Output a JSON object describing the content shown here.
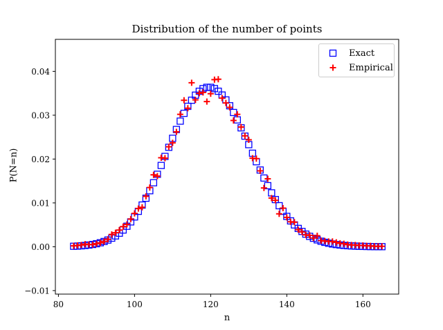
{
  "chart_data": {
    "type": "scatter",
    "title": "Distribution of the number of points",
    "xlabel": "n",
    "ylabel": "P(N=n)",
    "xlim": [
      79.2,
      169.4
    ],
    "ylim": [
      -0.0108,
      0.0473
    ],
    "xticks": [
      80,
      100,
      120,
      140,
      160
    ],
    "xtick_labels": [
      "80",
      "100",
      "120",
      "140",
      "160"
    ],
    "yticks": [
      -0.01,
      0.0,
      0.01,
      0.02,
      0.03,
      0.04
    ],
    "ytick_labels": [
      "−0.01",
      "0.00",
      "0.01",
      "0.02",
      "0.03",
      "0.04"
    ],
    "grid": false,
    "legend_position": "top-right",
    "x": [
      84,
      85,
      86,
      87,
      88,
      89,
      90,
      91,
      92,
      93,
      94,
      95,
      96,
      97,
      98,
      99,
      100,
      101,
      102,
      103,
      104,
      105,
      106,
      107,
      108,
      109,
      110,
      111,
      112,
      113,
      114,
      115,
      116,
      117,
      118,
      119,
      120,
      121,
      122,
      123,
      124,
      125,
      126,
      127,
      128,
      129,
      130,
      131,
      132,
      133,
      134,
      135,
      136,
      137,
      138,
      139,
      140,
      141,
      142,
      143,
      144,
      145,
      146,
      147,
      148,
      149,
      150,
      151,
      152,
      153,
      154,
      155,
      156,
      157,
      158,
      159,
      160,
      161,
      162,
      163,
      164,
      165
    ],
    "series": [
      {
        "name": "Exact",
        "marker": "square",
        "color": "#0000ff",
        "values": [
          0.00011,
          0.00015,
          0.00021,
          0.00029,
          0.00039,
          0.00052,
          0.00069,
          0.00091,
          0.00119,
          0.00153,
          0.00196,
          0.00247,
          0.00309,
          0.00382,
          0.00468,
          0.00567,
          0.0068,
          0.00808,
          0.00951,
          0.01107,
          0.01278,
          0.0146,
          0.01653,
          0.01854,
          0.0206,
          0.02268,
          0.02474,
          0.02674,
          0.02865,
          0.03043,
          0.03203,
          0.03342,
          0.03457,
          0.03546,
          0.03606,
          0.03636,
          0.03636,
          0.03606,
          0.03547,
          0.0346,
          0.03349,
          0.03215,
          0.03062,
          0.02893,
          0.02712,
          0.02523,
          0.02329,
          0.02133,
          0.01939,
          0.0175,
          0.01567,
          0.01393,
          0.01229,
          0.01076,
          0.00936,
          0.00808,
          0.00693,
          0.0059,
          0.00498,
          0.00418,
          0.00349,
          0.00288,
          0.00237,
          0.00193,
          0.00157,
          0.00126,
          0.00101,
          0.0008,
          0.00063,
          0.0005,
          0.00039,
          0.0003,
          0.00023,
          0.00018,
          0.00014,
          0.0001,
          8e-05,
          6e-05,
          4e-05,
          3e-05,
          2e-05,
          2e-05
        ]
      },
      {
        "name": "Empirical",
        "marker": "plus",
        "color": "#ff0000",
        "values": [
          0.0002,
          0.0003,
          0.0004,
          0.0006,
          0.0005,
          0.0005,
          0.0007,
          0.0009,
          0.0012,
          0.0017,
          0.0028,
          0.0032,
          0.0038,
          0.0046,
          0.0051,
          0.0063,
          0.0076,
          0.0087,
          0.009,
          0.0115,
          0.0135,
          0.0164,
          0.0161,
          0.0203,
          0.0202,
          0.0228,
          0.0237,
          0.0262,
          0.0302,
          0.0334,
          0.0316,
          0.0374,
          0.0335,
          0.035,
          0.0352,
          0.0331,
          0.0349,
          0.0381,
          0.0382,
          0.0339,
          0.0328,
          0.0318,
          0.0288,
          0.0302,
          0.0273,
          0.0253,
          0.0244,
          0.0202,
          0.0201,
          0.0173,
          0.0134,
          0.0155,
          0.0111,
          0.0106,
          0.0075,
          0.0088,
          0.0067,
          0.0057,
          0.0056,
          0.0039,
          0.0034,
          0.0027,
          0.0026,
          0.002,
          0.0025,
          0.0014,
          0.0013,
          0.0012,
          0.0012,
          0.001,
          0.0008,
          0.0007,
          0.0005,
          0.0004,
          0.0004,
          0.0003,
          0.0003,
          0.0002,
          0.0002,
          0.0001,
          0.0001,
          0.0001
        ]
      }
    ]
  }
}
